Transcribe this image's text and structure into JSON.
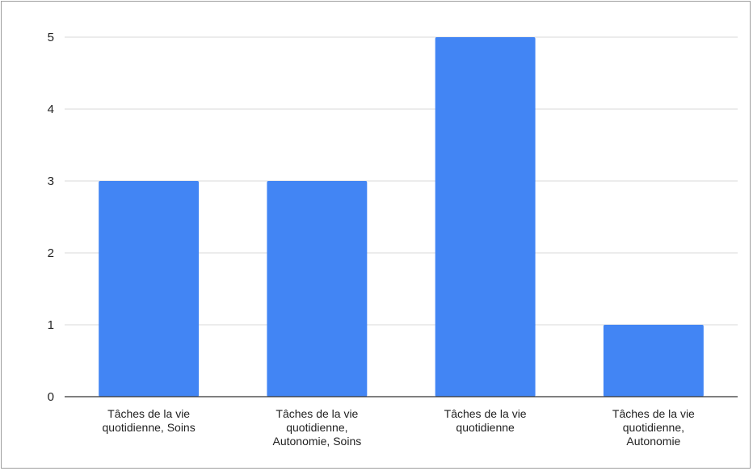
{
  "chart_data": {
    "type": "bar",
    "categories": [
      [
        "Tâches de la vie",
        "quotidienne, Soins"
      ],
      [
        "Tâches de la vie",
        "quotidienne,",
        "Autonomie, Soins"
      ],
      [
        "Tâches de la vie",
        "quotidienne"
      ],
      [
        "Tâches de la vie",
        "quotidienne,",
        "Autonomie"
      ]
    ],
    "values": [
      3,
      3,
      5,
      1
    ],
    "title": "",
    "xlabel": "",
    "ylabel": "",
    "ylim": [
      0,
      5
    ],
    "yticks": [
      0,
      1,
      2,
      3,
      4,
      5
    ],
    "grid": true,
    "legend": "none",
    "bar_color": "#4285f4",
    "grid_color": "#d9d9d9",
    "axis_color": "#333333"
  }
}
